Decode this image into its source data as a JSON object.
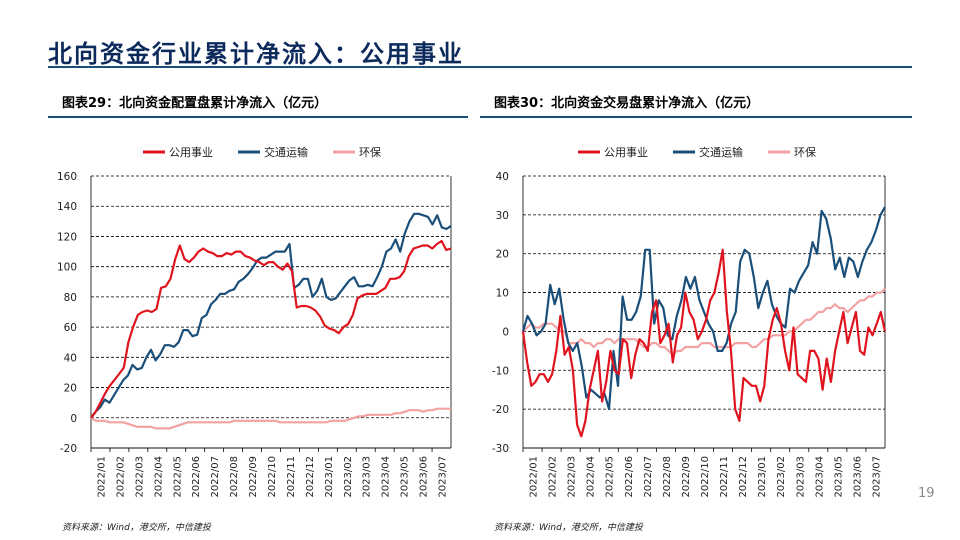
{
  "slide": {
    "title": "北向资金行业累计净流入：公用事业",
    "page_number": "19"
  },
  "charts": [
    {
      "caption": "图表29：北向资金配置盘累计净流入（亿元）",
      "source": "资料来源：Wind，港交所，中信建投"
    },
    {
      "caption": "图表30：北向资金交易盘累计净流入（亿元）",
      "source": "资料来源：Wind，港交所，中信建投"
    }
  ],
  "colors": {
    "公用事业": "#e0141e",
    "交通运输": "#1a4f7a",
    "环保": "#f2a2a2",
    "title": "#0d2a5c"
  },
  "chart_data": [
    {
      "type": "line",
      "title": "图表29：北向资金配置盘累计净流入（亿元）",
      "ylim": [
        -20,
        160
      ],
      "yticks": [
        -20,
        0,
        20,
        40,
        60,
        80,
        100,
        120,
        140,
        160
      ],
      "grid": true,
      "legend": "top",
      "x_labels": [
        "2022/01",
        "2022/02",
        "2022/03",
        "2022/04",
        "2022/05",
        "2022/06",
        "2022/07",
        "2022/08",
        "2022/09",
        "2022/10",
        "2022/11",
        "2022/12",
        "2023/01",
        "2023/02",
        "2023/03",
        "2023/04",
        "2023/05",
        "2023/06",
        "2023/07"
      ],
      "series": [
        {
          "name": "公用事业",
          "values": [
            0,
            4,
            10,
            16,
            21,
            25,
            29,
            33,
            50,
            60,
            68,
            70,
            71,
            70,
            72,
            86,
            87,
            92,
            105,
            114,
            105,
            103,
            106,
            110,
            112,
            110,
            109,
            107,
            107,
            109,
            108,
            110,
            110,
            107,
            106,
            104,
            103,
            101,
            103,
            103,
            100,
            98,
            102,
            97,
            73,
            74,
            74,
            73,
            71,
            67,
            61,
            59,
            58,
            56,
            60,
            62,
            68,
            79,
            81,
            82,
            82,
            82,
            84,
            86,
            92,
            92,
            93,
            97,
            107,
            112,
            113,
            114,
            114,
            112,
            115,
            117,
            111,
            112
          ]
        },
        {
          "name": "交通运输",
          "values": [
            0,
            4,
            7,
            12,
            10,
            15,
            20,
            25,
            28,
            35,
            32,
            33,
            40,
            45,
            38,
            42,
            48,
            48,
            47,
            50,
            58,
            58,
            54,
            55,
            66,
            68,
            75,
            78,
            82,
            82,
            84,
            85,
            90,
            92,
            95,
            99,
            104,
            106,
            106,
            108,
            110,
            110,
            110,
            115,
            86,
            88,
            92,
            92,
            80,
            84,
            92,
            80,
            78,
            79,
            83,
            87,
            91,
            93,
            87,
            87,
            88,
            87,
            93,
            100,
            110,
            112,
            118,
            110,
            122,
            130,
            135,
            135,
            134,
            133,
            128,
            134,
            126,
            125,
            127
          ]
        },
        {
          "name": "环保",
          "values": [
            0,
            -2,
            -2,
            -2,
            -3,
            -3,
            -3,
            -3,
            -4,
            -5,
            -6,
            -6,
            -6,
            -6,
            -7,
            -7,
            -7,
            -7,
            -6,
            -5,
            -4,
            -3,
            -3,
            -3,
            -3,
            -3,
            -3,
            -3,
            -3,
            -3,
            -3,
            -2,
            -2,
            -2,
            -2,
            -2,
            -2,
            -2,
            -2,
            -2,
            -2,
            -3,
            -3,
            -3,
            -3,
            -3,
            -3,
            -3,
            -3,
            -3,
            -3,
            -3,
            -2,
            -2,
            -2,
            -2,
            -1,
            0,
            1,
            1,
            2,
            2,
            2,
            2,
            2,
            2,
            3,
            3,
            4,
            5,
            5,
            5,
            4,
            5,
            5,
            6,
            6,
            6,
            6
          ]
        }
      ]
    },
    {
      "type": "line",
      "title": "图表30：北向资金交易盘累计净流入（亿元）",
      "ylim": [
        -30,
        40
      ],
      "yticks": [
        -30,
        -20,
        -10,
        0,
        10,
        20,
        30,
        40
      ],
      "grid": true,
      "legend": "top",
      "x_labels": [
        "2022/01",
        "2022/02",
        "2022/03",
        "2022/04",
        "2022/05",
        "2022/06",
        "2022/07",
        "2022/08",
        "2022/09",
        "2022/10",
        "2022/11",
        "2022/12",
        "2023/01",
        "2023/02",
        "2023/03",
        "2023/04",
        "2023/05",
        "2023/06",
        "2023/07"
      ],
      "series": [
        {
          "name": "公用事业",
          "values": [
            0,
            -8,
            -14,
            -13,
            -11,
            -11,
            -13,
            -11,
            -5,
            4,
            -6,
            -4,
            -10,
            -24,
            -27,
            -23,
            -15,
            -10,
            -5,
            -18,
            -13,
            -5,
            -10,
            -11,
            -2,
            -3,
            -12,
            -6,
            -2,
            -3,
            -5,
            5,
            8,
            -3,
            -1,
            2,
            -8,
            -1,
            1,
            10,
            5,
            3,
            -2,
            0,
            3,
            8,
            10,
            15,
            21,
            5,
            -5,
            -20,
            -23,
            -12,
            -13,
            -14,
            -14,
            -18,
            -14,
            -2,
            3,
            6,
            2,
            -5,
            -10,
            1,
            -11,
            -12,
            -13,
            -5,
            -5,
            -7,
            -15,
            -7,
            -13,
            -5,
            0,
            5,
            -3,
            1,
            5,
            -5,
            -6,
            1,
            -1,
            2,
            5,
            0
          ]
        },
        {
          "name": "交通运输",
          "values": [
            0,
            4,
            2,
            -1,
            0,
            2,
            12,
            7,
            11,
            3,
            -3,
            -5,
            -3,
            -9,
            -17,
            -15,
            -16,
            -17,
            -16,
            -20,
            -5,
            -14,
            9,
            3,
            3,
            5,
            9,
            21,
            21,
            2,
            8,
            6,
            -1,
            -2,
            4,
            8,
            14,
            11,
            14,
            8,
            5,
            2,
            0,
            -5,
            -5,
            -3,
            2,
            5,
            18,
            21,
            20,
            14,
            6,
            10,
            13,
            7,
            4,
            2,
            1,
            11,
            10,
            13,
            15,
            17,
            23,
            20,
            31,
            29,
            24,
            16,
            19,
            14,
            19,
            18,
            14,
            18,
            21,
            23,
            26,
            30,
            32
          ]
        },
        {
          "name": "环保",
          "values": [
            0,
            1,
            2,
            1,
            1,
            2,
            2,
            2,
            1,
            0,
            0,
            -3,
            -3,
            -3,
            -2,
            -3,
            -3,
            -4,
            -3,
            -3,
            -2,
            -2,
            -3,
            -2,
            -2,
            -2,
            -2,
            -2,
            -3,
            -4,
            -4,
            -3,
            -3,
            -4,
            -4,
            -5,
            -6,
            -5,
            -5,
            -4,
            -4,
            -4,
            -4,
            -3,
            -3,
            -3,
            -4,
            -4,
            -4,
            -4,
            -4,
            -3,
            -3,
            -3,
            -3,
            -4,
            -4,
            -3,
            -2,
            -2,
            -1,
            -1,
            -1,
            -1,
            0,
            0,
            1,
            2,
            3,
            3,
            4,
            5,
            5,
            6,
            6,
            7,
            6,
            6,
            5,
            6,
            7,
            8,
            8,
            9,
            9,
            10,
            10,
            11
          ]
        }
      ]
    }
  ]
}
